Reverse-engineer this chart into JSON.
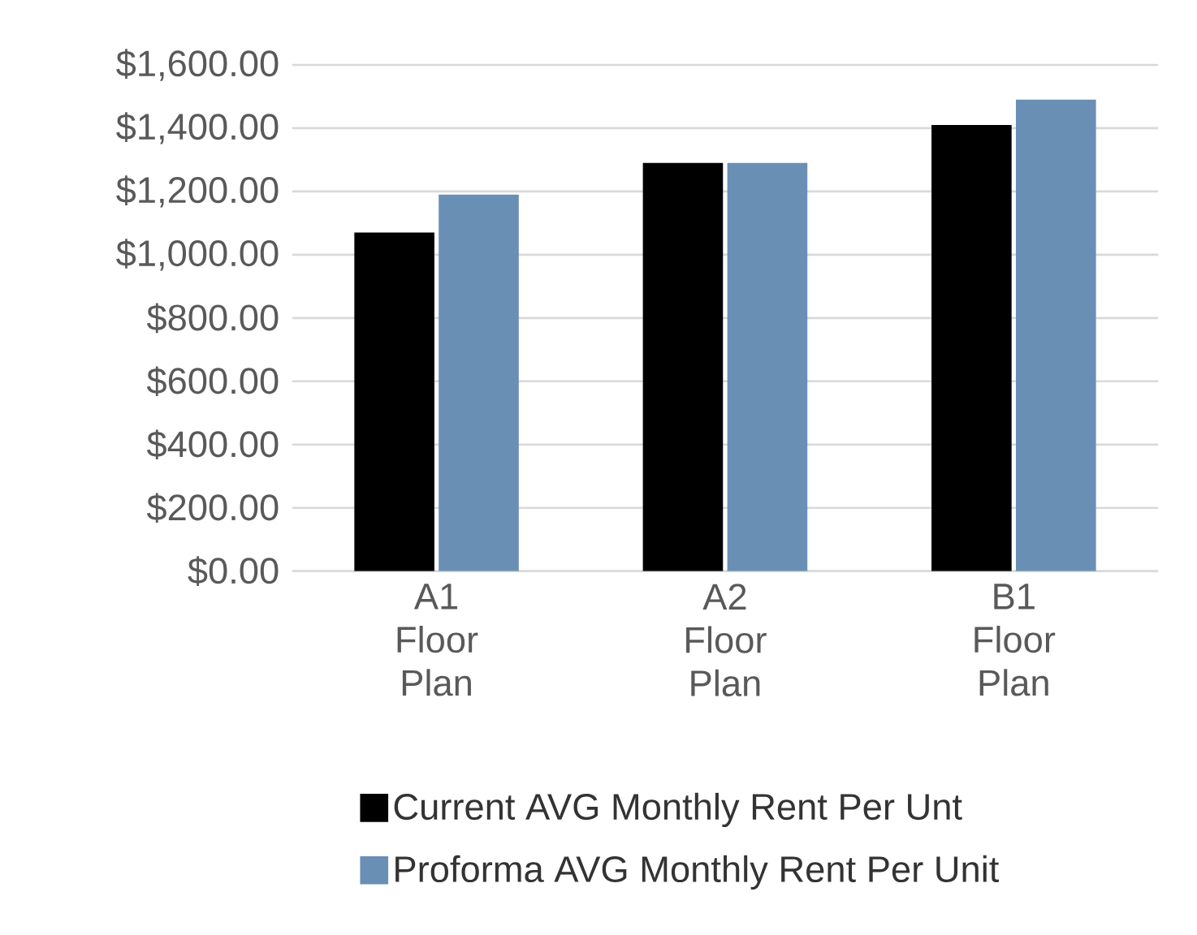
{
  "chart_data": {
    "type": "bar",
    "categories": [
      "A1 Floor Plan",
      "A2 Floor Plan",
      "B1 Floor Plan"
    ],
    "series": [
      {
        "name": "Current AVG Monthly Rent Per Unt",
        "color": "#000000",
        "values": [
          1070,
          1290,
          1410
        ]
      },
      {
        "name": "Proforma AVG Monthly Rent Per Unit",
        "color": "#6a8fb5",
        "values": [
          1190,
          1290,
          1490
        ]
      }
    ],
    "ylim": [
      0,
      1600
    ],
    "yticks": [
      {
        "value": 0,
        "label": "$0.00"
      },
      {
        "value": 200,
        "label": "$200.00"
      },
      {
        "value": 400,
        "label": "$400.00"
      },
      {
        "value": 600,
        "label": "$600.00"
      },
      {
        "value": 800,
        "label": "$800.00"
      },
      {
        "value": 1000,
        "label": "$1,000.00"
      },
      {
        "value": 1200,
        "label": "$1,200.00"
      },
      {
        "value": 1400,
        "label": "$1,400.00"
      },
      {
        "value": 1600,
        "label": "$1,600.00"
      }
    ],
    "grid": "y",
    "legend": "bottom"
  }
}
